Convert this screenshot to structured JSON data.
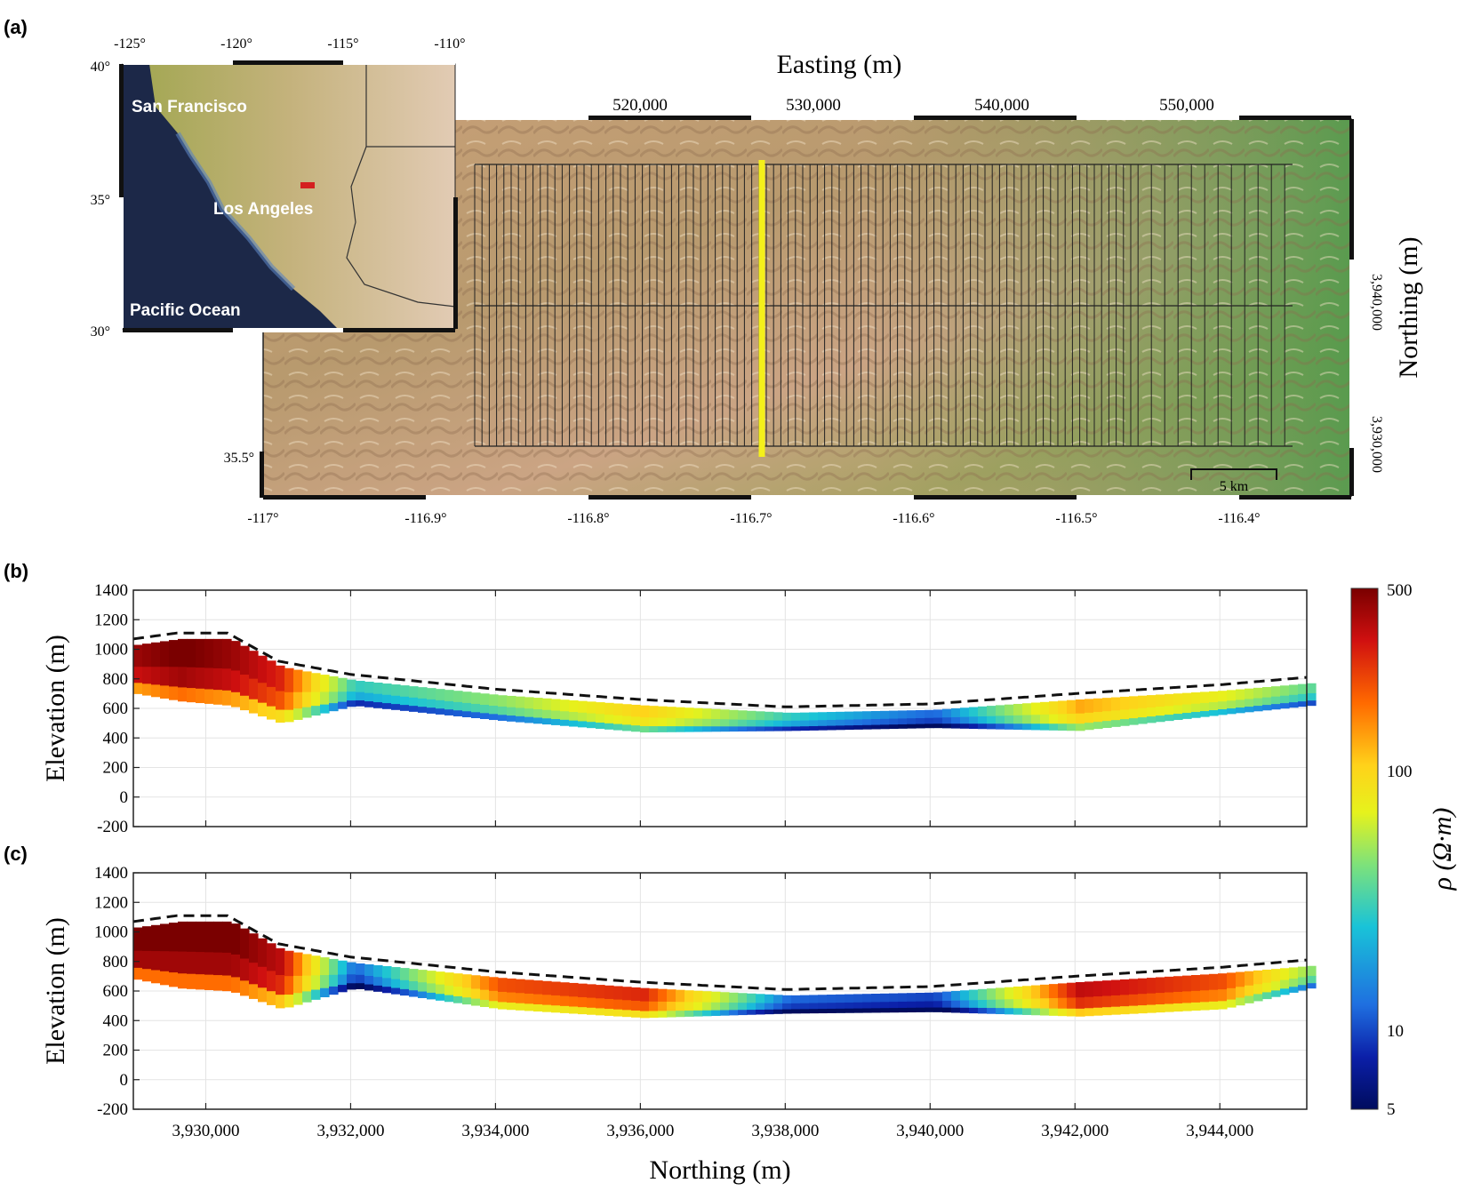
{
  "panel_a": {
    "label": "(a)",
    "top_axis_title": "Easting (m)",
    "right_axis_title": "Northing (m)",
    "easting_ticks": [
      "520,000",
      "530,000",
      "540,000",
      "550,000"
    ],
    "northing_ticks": [
      "3,940,000",
      "3,930,000"
    ],
    "longitude_ticks": [
      "-117°",
      "-116.9°",
      "-116.8°",
      "-116.7°",
      "-116.6°",
      "-116.5°",
      "-116.4°"
    ],
    "latitude_tick": "35.5°",
    "scale_bar": "5 km",
    "survey_line_color": "#f4f01a",
    "inset": {
      "top_ticks": [
        "-125°",
        "-120°",
        "-115°",
        "-110°"
      ],
      "left_ticks": [
        "40°",
        "35°",
        "30°"
      ],
      "labels": [
        "San Francisco",
        "Los Angeles",
        "Pacific Ocean"
      ],
      "marker_color": "#d42020"
    }
  },
  "panel_b": {
    "label": "(b)"
  },
  "panel_c": {
    "label": "(c)"
  },
  "colorbar": {
    "title": "ρ (Ω·m)",
    "ticks": [
      "500",
      "100",
      "10",
      "5"
    ],
    "scale": "log",
    "colors": [
      "#7a0000",
      "#d01010",
      "#ff6a00",
      "#ffd21a",
      "#e6f21c",
      "#7ee27a",
      "#19c3d8",
      "#1f6fe0",
      "#0b1fa8",
      "#000c5e"
    ]
  },
  "chart_data": [
    {
      "type": "heatmap",
      "panel": "(b)",
      "xlabel": "",
      "ylabel": "Elevation (m)",
      "xlim": [
        3929000,
        3945200
      ],
      "ylim": [
        -200,
        1400
      ],
      "yticks": [
        "1400",
        "1200",
        "1000",
        "800",
        "600",
        "400",
        "200",
        "0",
        "-200"
      ],
      "x": [
        3929000,
        3929600,
        3930300,
        3931000,
        3932000,
        3934000,
        3936000,
        3938000,
        3940000,
        3942000,
        3944000,
        3945200
      ],
      "surface_elevation": [
        1070,
        1110,
        1110,
        920,
        830,
        730,
        660,
        610,
        630,
        700,
        760,
        810
      ],
      "bottom_elevation": [
        700,
        650,
        620,
        500,
        620,
        520,
        440,
        450,
        470,
        450,
        560,
        620
      ],
      "log10_resistivity": [
        2.5,
        2.6,
        2.5,
        2.3,
        1.3,
        1.5,
        1.9,
        1.3,
        1.0,
        2.0,
        1.7,
        1.4
      ]
    },
    {
      "type": "heatmap",
      "panel": "(c)",
      "xlabel": "Northing (m)",
      "ylabel": "Elevation (m)",
      "xlim": [
        3929000,
        3945200
      ],
      "ylim": [
        -200,
        1400
      ],
      "xticks": [
        "3,930,000",
        "3,932,000",
        "3,934,000",
        "3,936,000",
        "3,938,000",
        "3,940,000",
        "3,942,000",
        "3,944,000"
      ],
      "yticks": [
        "1400",
        "1200",
        "1000",
        "800",
        "600",
        "400",
        "200",
        "0",
        "-200"
      ],
      "x": [
        3929000,
        3929600,
        3930300,
        3931000,
        3932000,
        3934000,
        3936000,
        3938000,
        3940000,
        3942000,
        3944000,
        3945200
      ],
      "surface_elevation": [
        1070,
        1110,
        1110,
        920,
        830,
        730,
        660,
        610,
        630,
        700,
        760,
        810
      ],
      "bottom_elevation": [
        680,
        620,
        600,
        480,
        620,
        480,
        420,
        450,
        460,
        430,
        480,
        620
      ],
      "log10_resistivity": [
        2.6,
        2.6,
        2.6,
        2.4,
        1.0,
        2.2,
        2.3,
        1.0,
        0.9,
        2.4,
        2.2,
        1.5
      ]
    }
  ]
}
